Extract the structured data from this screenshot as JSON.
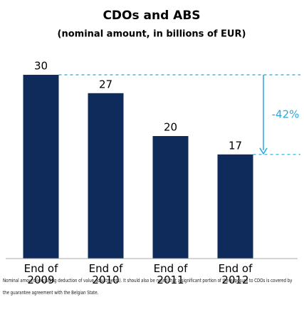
{
  "chart_data": {
    "type": "bar",
    "title": "CDOs and ABS",
    "subtitle": "(nominal amount, in billions of EUR)",
    "categories": [
      "End of 2009",
      "End of 2010",
      "End of 2011",
      "End of 2012"
    ],
    "values": [
      30,
      27,
      20,
      17
    ],
    "color": "#0f2b5b",
    "ylim": [
      0,
      30
    ],
    "annotation": "-42%",
    "annotation_color": "#29a8dc",
    "footnote": "Nominal amount (excluding deduction of value adjustments). It should also be noted that a significant portion of the exposure to CDOs is covered by the guarantee agreement with the Belgian State."
  }
}
